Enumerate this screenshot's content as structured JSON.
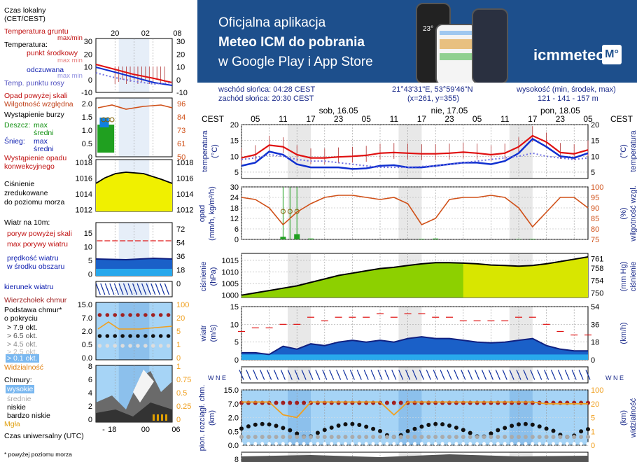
{
  "banner": {
    "line1": "Oficjalna aplikacja",
    "line2": "Meteo ICM do pobrania",
    "line3": "w Google Play i App Store",
    "logo": "icmmeteo",
    "logo_badge": "M°",
    "phone_temp": "23°",
    "bg_color": "#1d4f8c"
  },
  "header": {
    "sunrise": "wschód słońca: 04:28 CEST",
    "sunset": "zachód słońca: 20:30 CEST",
    "coords": "21°43'31\"E, 53°59'46\"N",
    "grid": "(x=261, y=355)",
    "height_label": "wysokość (min, środek, max)",
    "height_values": "121 - 141 - 157 m"
  },
  "legend": {
    "local_time": "Czas lokalny",
    "local_time_zone": "(CET/CEST)",
    "ground_temp": "Temperatura gruntu",
    "ground_temp_sub": "max/min",
    "temperature": "Temperatura:",
    "mid_point": "punkt środkowy",
    "mid_max": "max min",
    "apparent": "odczuwana",
    "apparent_sub": "max min",
    "dew_point": "Temp. punktu rosy",
    "rain_above": "Opad powyżej skali",
    "humidity": "Wilgotność względna",
    "storm": "Wystąpienie burzy",
    "rain": "Deszcz:",
    "rain_max": "max",
    "rain_mid": "średni",
    "snow": "Śnieg:",
    "snow_max": "max",
    "snow_mid": "średni",
    "convective": "Wystąpienie opadu",
    "convective2": "konwekcyjnego",
    "pressure": "Ciśnienie",
    "pressure2": "zredukowane",
    "pressure3": "do poziomu morza",
    "wind": "Wiatr na 10m:",
    "gust_above": "poryw powyżej skali",
    "gust_max": "max porywy wiatru",
    "wind_speed": "prędkość wiatru",
    "wind_speed2": "w środku obszaru",
    "wind_dir": "kierunek wiatru",
    "cloud_top": "Wierzchołek chmur",
    "cloud_base": "Podstawa chmur*",
    "cloud_base2": "o pokryciu",
    "cb1": "> 7.9 okt.",
    "cb2": "> 6.5 okt.",
    "cb3": "> 4.5 okt.",
    "cb4": "> 2.5 okt.",
    "cb5": "> 0.1 okt.",
    "visibility": "Widzialność",
    "clouds": "Chmury:",
    "high": "wysokie",
    "medium": "średnie",
    "low": "niskie",
    "very_low": "bardzo niskie",
    "fog": "Mgła",
    "utc": "Czas uniwersalny (UTC)",
    "footnote": "* powyżej poziomu morza",
    "top_ticks": [
      "20",
      "02",
      "08"
    ],
    "bottom_ticks": [
      "18",
      "00",
      "06"
    ]
  },
  "axes": {
    "cest": "CEST",
    "days": [
      "sob, 16.05",
      "nie, 17.05",
      "pon, 18.05"
    ],
    "hours": [
      "05",
      "11",
      "17",
      "23",
      "05",
      "11",
      "17",
      "23",
      "05",
      "11",
      "17",
      "23",
      "05"
    ],
    "temp_label_l": "temperatura",
    "temp_unit": "(°C)",
    "temp_ticks": [
      "20",
      "15",
      "10",
      "5"
    ],
    "legend_temp_ticks": [
      "30",
      "20",
      "10",
      "0",
      "-10"
    ],
    "rain_label": "opad",
    "rain_unit": "(mm/h, kg/m²/h)",
    "rain_ticks": [
      "30",
      "24",
      "18",
      "12",
      "6",
      "0"
    ],
    "legend_rain_ticks": [
      "2.0",
      "1.5",
      "1.0",
      "0.5",
      "0"
    ],
    "hum_label": "wilgotność wzgl.",
    "hum_unit": "(%)",
    "hum_ticks": [
      "100",
      "95",
      "90",
      "85",
      "80",
      "75"
    ],
    "legend_hum_ticks": [
      "96",
      "84",
      "73",
      "61",
      "50"
    ],
    "press_label": "ciśnienie",
    "press_unit": "(hPa)",
    "press_ticks": [
      "1015",
      "1010",
      "1005",
      "1000"
    ],
    "legend_press_ticks": [
      "1018",
      "1016",
      "1014",
      "1012"
    ],
    "pressmm_label": "ciśnienie",
    "pressmm_unit": "(mm Hg)",
    "pressmm_ticks": [
      "761",
      "758",
      "754",
      "750"
    ],
    "wind_label": "wiatr",
    "wind_unit": "(m/s)",
    "wind_ticks": [
      "15",
      "10",
      "5",
      "0"
    ],
    "legend_wind_ticks": [
      "15",
      "10",
      "5",
      "0"
    ],
    "windkm_unit": "(km/h)",
    "windkm_ticks": [
      "54",
      "36",
      "18",
      "0"
    ],
    "legend_windkm_ticks": [
      "72",
      "54",
      "36",
      "18",
      "0"
    ],
    "cloud_label": "pion. rozciągł. chm.",
    "cloud_unit": "(km)",
    "cloud_ticks": [
      "15.0",
      "7.0",
      "2.0",
      "0.5",
      "0.0"
    ],
    "vis_label": "widzialność",
    "vis_unit": "(km)",
    "vis_ticks": [
      "100",
      "20",
      "5",
      "1",
      "0"
    ],
    "clouds_ticks": [
      "8",
      "6",
      "4",
      "2",
      "0"
    ],
    "clouds_frac_ticks": [
      "1",
      "0.75",
      "0.5",
      "0.25",
      "0"
    ],
    "compass": "W N E"
  },
  "colors": {
    "temp_red": "#e01010",
    "temp_blue": "#1030d0",
    "dew": "#7070e0",
    "humidity": "#d05018",
    "pressure_fill": "#c8dc00",
    "wind_blue": "#1040c0",
    "wind_fill": "#1a60c8",
    "rain_green": "#20a020",
    "sky_blue": "#a6d4f6",
    "night_gray": "#e8e8e8",
    "visibility": "#f0a020",
    "cloud_dark": "#a02020"
  },
  "chart_data": [
    {
      "type": "line",
      "title": "temperatura",
      "ylabel": "(°C)",
      "ylim": [
        3,
        20
      ],
      "x": [
        0,
        3,
        6,
        9,
        12,
        15,
        18,
        21,
        24,
        27,
        30,
        33,
        36,
        39,
        42,
        45,
        48,
        51,
        54,
        57,
        60,
        63,
        66,
        69,
        72,
        75
      ],
      "series": [
        {
          "name": "max min",
          "values": [
            9.5,
            10.5,
            13.5,
            13,
            10.5,
            9.5,
            9.5,
            9.8,
            10,
            10.3,
            11,
            11.2,
            11,
            10.8,
            10.8,
            11,
            11.3,
            11,
            10.5,
            11,
            13,
            16.5,
            14.5,
            11.2,
            10.8,
            12
          ]
        },
        {
          "name": "odczuwana",
          "values": [
            7,
            8,
            11.5,
            10.5,
            7.5,
            6.5,
            6.5,
            6.5,
            6,
            6.2,
            7,
            7.2,
            6.5,
            6.5,
            7,
            7.5,
            8,
            8,
            7.5,
            8.5,
            11,
            15.5,
            13,
            10,
            9.5,
            11
          ]
        },
        {
          "name": "Temp. punktu rosy",
          "values": [
            9,
            9.5,
            10.5,
            10,
            9,
            8.5,
            8.5,
            8,
            7.5,
            7,
            6.5,
            6.5,
            6.5,
            6.8,
            7,
            7.5,
            8,
            8.5,
            9,
            9.5,
            10,
            11,
            10,
            9.5,
            9,
            9.5
          ]
        }
      ]
    },
    {
      "type": "line",
      "title": "opad",
      "ylim": [
        0,
        30
      ],
      "x": [
        0,
        3,
        6,
        9,
        12,
        15,
        18,
        21,
        24,
        27,
        30,
        33,
        36,
        39,
        42,
        45,
        48,
        51,
        54,
        57,
        60,
        63,
        66,
        69,
        72,
        75
      ],
      "series": [
        {
          "name": "Wilgotność względna",
          "values": [
            95,
            94,
            90,
            82,
            88,
            92,
            95,
            96,
            96,
            95,
            94,
            95,
            92,
            82,
            85,
            94,
            95,
            95,
            96,
            95,
            90,
            81,
            88,
            95,
            95,
            90
          ]
        },
        {
          "name": "Deszcz",
          "values": [
            0,
            0,
            0,
            1.5,
            3,
            0.5,
            0,
            0,
            0,
            0,
            0,
            0,
            0,
            0.3,
            0.5,
            0,
            0,
            0,
            0,
            0,
            0.2,
            0.3,
            0,
            0,
            0,
            0
          ]
        }
      ]
    },
    {
      "type": "area",
      "title": "ciśnienie",
      "ylabel": "(hPa)",
      "ylim": [
        999,
        1018
      ],
      "x": [
        0,
        3,
        6,
        9,
        12,
        15,
        18,
        21,
        24,
        27,
        30,
        33,
        36,
        39,
        42,
        45,
        48,
        51,
        54,
        57,
        60,
        63,
        66,
        69,
        72,
        75
      ],
      "values": [
        1000,
        1001,
        1002,
        1003,
        1004,
        1005.5,
        1007,
        1008.5,
        1009.5,
        1010.5,
        1011.5,
        1012,
        1012.8,
        1013.5,
        1014,
        1014,
        1013.8,
        1013.5,
        1013,
        1012.8,
        1012.5,
        1012.8,
        1013.5,
        1014.5,
        1015.5,
        1016.5
      ]
    },
    {
      "type": "line",
      "title": "wiatr",
      "ylabel": "(m/s)",
      "ylim": [
        0,
        15
      ],
      "x": [
        0,
        3,
        6,
        9,
        12,
        15,
        18,
        21,
        24,
        27,
        30,
        33,
        36,
        39,
        42,
        45,
        48,
        51,
        54,
        57,
        60,
        63,
        66,
        69,
        72,
        75
      ],
      "series": [
        {
          "name": "prędkość wiatru",
          "values": [
            2,
            2,
            1.5,
            3.8,
            3,
            4.5,
            4,
            5,
            5.5,
            5,
            5.5,
            5,
            6,
            6.5,
            6,
            6,
            5.5,
            5,
            4.8,
            5,
            5.5,
            6,
            4,
            3,
            2.5,
            2.5
          ]
        },
        {
          "name": "max porywy wiatru",
          "values": [
            8,
            9,
            9,
            10,
            10,
            12,
            11,
            12,
            12,
            12,
            13,
            12,
            13,
            13,
            12,
            12,
            11,
            11,
            11,
            11,
            12,
            12,
            10,
            8,
            7,
            7
          ]
        }
      ]
    },
    {
      "type": "line",
      "title": "widzialność",
      "ylabel": "(km)",
      "ylim": [
        0,
        100
      ],
      "x": [
        0,
        3,
        6,
        9,
        12,
        15,
        18,
        21,
        24,
        27,
        30,
        33,
        36,
        39,
        42,
        45,
        48,
        51,
        54,
        57,
        60,
        63,
        66,
        69,
        72,
        75
      ],
      "series": [
        {
          "name": "Widzialność",
          "values": [
            30,
            30,
            30,
            8,
            5,
            30,
            30,
            30,
            30,
            30,
            30,
            8,
            30,
            30,
            30,
            30,
            30,
            30,
            30,
            30,
            30,
            30,
            20,
            20,
            20,
            20
          ]
        }
      ]
    }
  ]
}
